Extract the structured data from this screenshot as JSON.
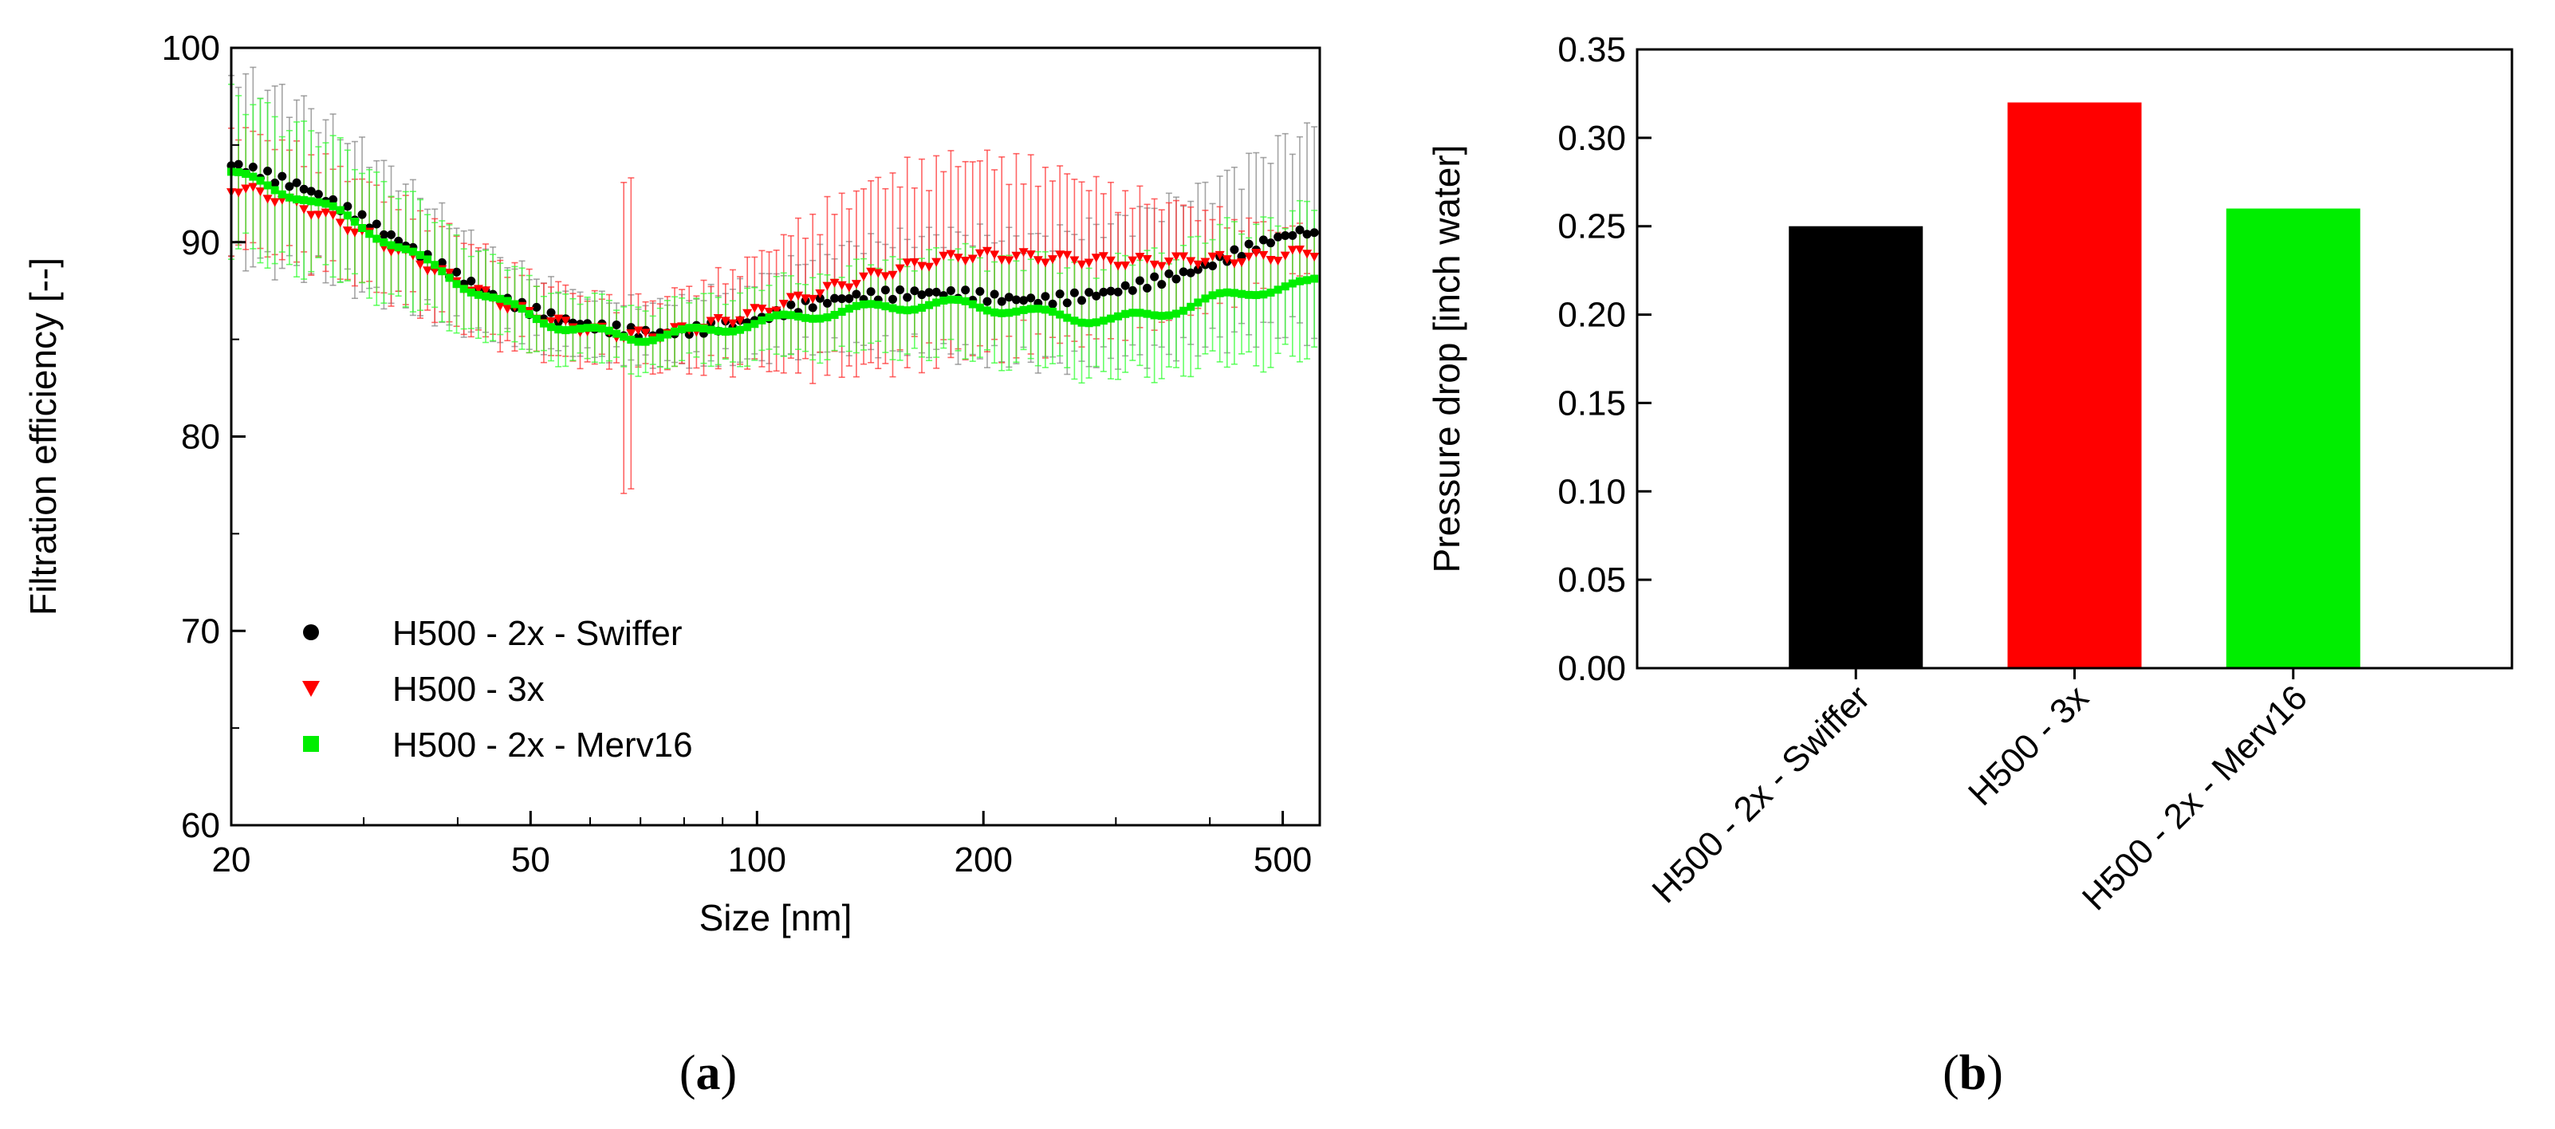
{
  "chart_data": [
    {
      "type": "scatter",
      "panel": "a",
      "xlabel": "Size [nm]",
      "ylabel": "Filtration efficiency [--]",
      "xscale": "log",
      "xlim": [
        20,
        560
      ],
      "ylim": [
        60,
        100
      ],
      "xticks": [
        20,
        50,
        100,
        200,
        500
      ],
      "xtick_labels": [
        "20",
        "50",
        "100",
        "200",
        "500"
      ],
      "yticks": [
        60,
        70,
        80,
        90,
        100
      ],
      "ytick_labels": [
        "60",
        "70",
        "80",
        "90",
        "100"
      ],
      "legend_position": "lower-left",
      "series": [
        {
          "name": "H500 - 2x - Swiffer",
          "color": "#000000",
          "marker": "circle",
          "error_color": "#888888",
          "x": [
            20,
            22,
            25,
            28,
            32,
            36,
            40,
            45,
            50,
            55,
            60,
            65,
            70,
            75,
            80,
            90,
            100,
            110,
            120,
            135,
            150,
            170,
            190,
            210,
            240,
            270,
            300,
            340,
            380,
            420,
            460,
            500,
            540,
            560
          ],
          "y": [
            94.0,
            93.5,
            92.8,
            91.8,
            90.5,
            89.3,
            88.2,
            87.2,
            86.5,
            86.0,
            85.7,
            85.5,
            85.3,
            85.3,
            85.4,
            85.7,
            86.0,
            86.5,
            86.9,
            87.2,
            87.3,
            87.4,
            87.3,
            87.1,
            87.0,
            87.2,
            87.5,
            88.0,
            88.5,
            89.2,
            89.8,
            90.3,
            90.6,
            90.0
          ],
          "err": [
            4.5,
            4.3,
            4.0,
            3.6,
            3.2,
            2.8,
            2.4,
            2.0,
            1.7,
            1.5,
            1.4,
            1.4,
            1.4,
            1.5,
            1.5,
            1.7,
            1.9,
            2.1,
            2.3,
            2.5,
            2.6,
            2.8,
            2.9,
            3.0,
            3.0,
            3.2,
            3.3,
            3.5,
            3.7,
            3.9,
            4.2,
            4.5,
            4.8,
            5.0
          ]
        },
        {
          "name": "H500 - 3x",
          "color": "#ff0000",
          "marker": "triangle-down",
          "error_color": "#ff3333",
          "x": [
            20,
            22,
            25,
            28,
            32,
            36,
            40,
            45,
            50,
            55,
            60,
            65,
            70,
            75,
            80,
            90,
            100,
            110,
            120,
            135,
            150,
            170,
            190,
            210,
            240,
            270,
            300,
            340,
            380,
            420,
            460,
            500,
            540,
            560
          ],
          "y": [
            92.8,
            92.5,
            91.8,
            91.0,
            89.9,
            88.9,
            88.0,
            87.0,
            86.3,
            85.8,
            85.5,
            85.3,
            85.2,
            85.3,
            85.5,
            85.9,
            86.4,
            86.9,
            87.4,
            88.0,
            88.5,
            89.0,
            89.3,
            89.3,
            89.2,
            89.1,
            89.0,
            89.0,
            89.1,
            89.1,
            89.2,
            89.3,
            89.5,
            89.5
          ],
          "err": [
            2.8,
            2.7,
            2.6,
            2.5,
            2.4,
            2.3,
            2.2,
            2.0,
            1.8,
            1.7,
            1.6,
            1.6,
            1.6,
            1.7,
            1.9,
            2.2,
            2.6,
            3.2,
            3.7,
            4.2,
            4.5,
            4.6,
            4.6,
            4.5,
            4.2,
            3.8,
            3.3,
            2.9,
            2.4,
            2.0,
            1.6,
            1.3,
            1.1,
            1.0
          ]
        },
        {
          "name": "H500 - 2x - Merv16",
          "color": "#00ee00",
          "marker": "square",
          "error_color": "#33ff33",
          "x": [
            20,
            22,
            25,
            28,
            32,
            36,
            40,
            45,
            50,
            55,
            60,
            65,
            70,
            75,
            80,
            90,
            100,
            110,
            120,
            135,
            150,
            170,
            190,
            210,
            240,
            270,
            300,
            340,
            380,
            420,
            460,
            500,
            540,
            560
          ],
          "y": [
            93.5,
            93.0,
            92.3,
            91.4,
            90.2,
            89.0,
            88.0,
            87.0,
            86.2,
            85.7,
            85.4,
            85.2,
            85.1,
            85.2,
            85.3,
            85.6,
            85.8,
            86.1,
            86.3,
            86.5,
            86.7,
            86.8,
            86.8,
            86.6,
            86.3,
            86.1,
            86.0,
            86.3,
            86.8,
            87.2,
            87.5,
            87.7,
            87.8,
            88.0
          ],
          "err": [
            3.8,
            3.6,
            3.4,
            3.1,
            2.8,
            2.5,
            2.2,
            1.9,
            1.7,
            1.6,
            1.5,
            1.5,
            1.5,
            1.5,
            1.5,
            1.6,
            1.7,
            1.8,
            1.9,
            2.0,
            2.2,
            2.4,
            2.5,
            2.5,
            2.5,
            2.6,
            2.7,
            2.9,
            3.0,
            3.2,
            3.3,
            3.4,
            3.5,
            3.6
          ]
        }
      ],
      "legend": [
        {
          "label": "H500 - 2x - Swiffer",
          "color": "#000000",
          "marker": "circle"
        },
        {
          "label": "H500 - 3x",
          "color": "#ff0000",
          "marker": "triangle-down"
        },
        {
          "label": "H500 - 2x - Merv16",
          "color": "#00ee00",
          "marker": "square"
        }
      ]
    },
    {
      "type": "bar",
      "panel": "b",
      "ylabel": "Pressure drop [inch water]",
      "ylim": [
        0,
        0.35
      ],
      "yticks": [
        0,
        0.05,
        0.1,
        0.15,
        0.2,
        0.25,
        0.3,
        0.35
      ],
      "ytick_labels": [
        "0.00",
        "0.05",
        "0.10",
        "0.15",
        "0.20",
        "0.25",
        "0.30",
        "0.35"
      ],
      "categories": [
        "H500 - 2x - Swiffer",
        "H500 - 3x",
        "H500 - 2x - Merv16"
      ],
      "values": [
        0.25,
        0.32,
        0.26
      ],
      "colors": [
        "#000000",
        "#ff0000",
        "#00ee00"
      ]
    }
  ],
  "panels": {
    "a": {
      "open": "(",
      "letter": "a",
      "close": ")"
    },
    "b": {
      "open": "(",
      "letter": "b",
      "close": ")"
    }
  }
}
